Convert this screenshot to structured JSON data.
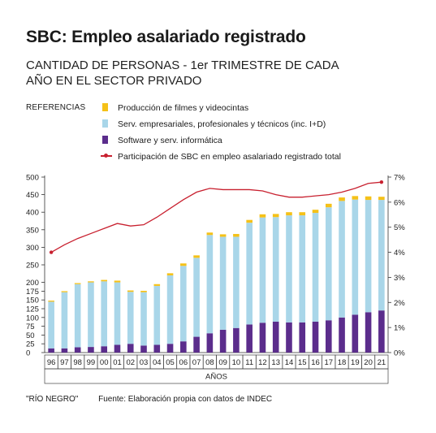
{
  "title": "SBC: Empleo asalariado registrado",
  "subtitle": "CANTIDAD DE PERSONAS - 1er TRIMESTRE DE CADA AÑO EN EL SECTOR PRIVADO",
  "legend_title": "REFERENCIAS",
  "footer": {
    "publisher": "\"RÍO NEGRO\"",
    "source": "Fuente: Elaboración propia con datos de INDEC"
  },
  "chart_data": {
    "type": "bar",
    "stacked": true,
    "categories": [
      "96",
      "97",
      "98",
      "99",
      "00",
      "01",
      "02",
      "03",
      "04",
      "05",
      "06",
      "07",
      "08",
      "09",
      "10",
      "11",
      "12",
      "13",
      "14",
      "15",
      "16",
      "17",
      "18",
      "19",
      "20",
      "21"
    ],
    "xlabel": "AÑOS",
    "ylim": [
      0,
      500
    ],
    "yticks": [
      0,
      25,
      50,
      75,
      100,
      125,
      150,
      175,
      200,
      250,
      300,
      350,
      400,
      450,
      500
    ],
    "y2lim": [
      0,
      7
    ],
    "y2ticks": [
      "0%",
      "1%",
      "2%",
      "3%",
      "4%",
      "5%",
      "6%",
      "7%"
    ],
    "grid": false,
    "legend_position": "top",
    "series": [
      {
        "name": "Software y serv. informática",
        "color": "#5b2d8c",
        "values": [
          12,
          12,
          15,
          16,
          18,
          22,
          25,
          20,
          22,
          25,
          32,
          45,
          55,
          65,
          70,
          80,
          85,
          88,
          86,
          86,
          88,
          92,
          100,
          108,
          115,
          120
        ]
      },
      {
        "name": "Serv. empresariales, profesionales y técnicos (inc. I+D)",
        "color": "#a9d6e9",
        "values": [
          133,
          160,
          180,
          184,
          185,
          178,
          148,
          152,
          168,
          195,
          215,
          225,
          280,
          265,
          260,
          290,
          300,
          298,
          305,
          305,
          310,
          322,
          332,
          328,
          320,
          315
        ]
      },
      {
        "name": "Producción de filmes y videocintas",
        "color": "#f5c118",
        "values": [
          3,
          3,
          3,
          3,
          4,
          5,
          4,
          4,
          5,
          6,
          7,
          7,
          7,
          7,
          8,
          8,
          9,
          9,
          9,
          9,
          9,
          10,
          10,
          10,
          10,
          9
        ]
      },
      {
        "name": "Participación de SBC en empleo asalariado registrado total",
        "color": "#c8202f",
        "type": "line",
        "axis": "right",
        "values": [
          4.0,
          4.3,
          4.55,
          4.75,
          4.95,
          5.15,
          5.05,
          5.1,
          5.4,
          5.75,
          6.1,
          6.4,
          6.55,
          6.5,
          6.5,
          6.5,
          6.45,
          6.3,
          6.2,
          6.2,
          6.25,
          6.3,
          6.4,
          6.55,
          6.75,
          6.8
        ]
      }
    ]
  }
}
